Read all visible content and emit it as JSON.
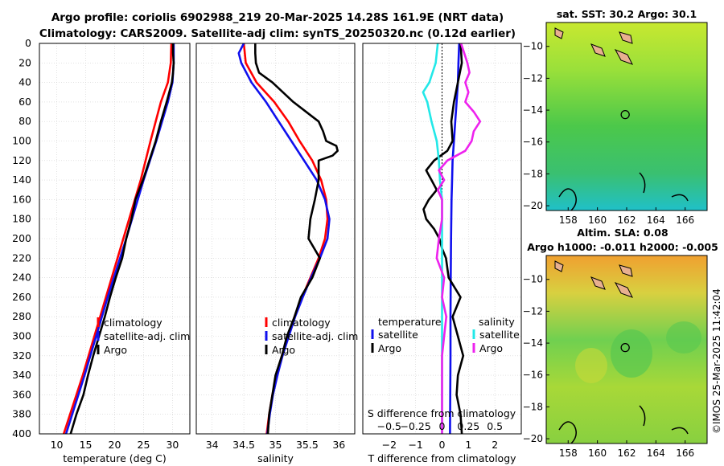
{
  "figure": {
    "title_line1": "Argo profile: coriolis 6902988_219 20-Mar-2025 14.28S 161.9E (NRT data)",
    "title_line2": "Climatology: CARS2009. Satellite-adj clim: synTS_20250320.nc (0.12d earlier)",
    "stamp": "©IMOS 25-Mar-2025 11:42:04"
  },
  "colors": {
    "climatology": "#ff0000",
    "satellite": "#1010ee",
    "argo": "#000000",
    "sat_salinity": "#22e8e8",
    "argo_salinity": "#ee22ee",
    "grid": "#d0d0d0"
  },
  "chart_data": [
    {
      "id": "temperature",
      "type": "line",
      "xlabel": "temperature (deg C)",
      "ylabel": "",
      "xlim": [
        7,
        33
      ],
      "ylim": [
        400,
        0
      ],
      "xticks": [
        10,
        15,
        20,
        25,
        30
      ],
      "yticks": [
        0,
        20,
        40,
        60,
        80,
        100,
        120,
        140,
        160,
        180,
        200,
        220,
        240,
        260,
        280,
        300,
        320,
        340,
        360,
        380,
        400
      ],
      "legend": [
        "climatology",
        "satellite-adj. clim",
        "Argo"
      ],
      "legend_position": "lower-right",
      "series": [
        {
          "name": "climatology",
          "color_key": "climatology",
          "depth": [
            0,
            20,
            40,
            60,
            100,
            140,
            200,
            260,
            300,
            340,
            400
          ],
          "values": [
            29.8,
            29.7,
            29.2,
            28.0,
            26.2,
            24.5,
            21.5,
            18.5,
            16.5,
            14.5,
            11.2
          ]
        },
        {
          "name": "satellite-adj. clim",
          "color_key": "satellite",
          "depth": [
            0,
            20,
            40,
            60,
            100,
            140,
            200,
            260,
            300,
            340,
            400
          ],
          "values": [
            30.2,
            30.2,
            30.0,
            29.2,
            27.2,
            25.0,
            22.0,
            18.8,
            16.8,
            14.8,
            11.6
          ]
        },
        {
          "name": "Argo",
          "color_key": "argo",
          "depth": [
            0,
            10,
            20,
            30,
            40,
            60,
            80,
            100,
            120,
            140,
            160,
            180,
            200,
            220,
            240,
            260,
            280,
            300,
            320,
            340,
            360,
            380,
            400
          ],
          "values": [
            30.1,
            30.1,
            30.2,
            30.1,
            29.9,
            29.0,
            28.0,
            27.1,
            26.0,
            24.9,
            23.6,
            22.9,
            22.0,
            21.3,
            20.2,
            19.2,
            18.3,
            17.3,
            16.3,
            15.4,
            14.6,
            13.4,
            12.4
          ]
        }
      ]
    },
    {
      "id": "salinity",
      "type": "line",
      "xlabel": "salinity",
      "xlim": [
        33.75,
        36.25
      ],
      "ylim": [
        400,
        0
      ],
      "xticks": [
        34,
        34.5,
        35,
        35.5,
        36
      ],
      "legend": [
        "climatology",
        "satellite-adj. clim",
        "Argo"
      ],
      "legend_position": "lower-right",
      "series": [
        {
          "name": "climatology",
          "color_key": "climatology",
          "depth": [
            0,
            20,
            40,
            60,
            80,
            100,
            120,
            140,
            160,
            180,
            200,
            220,
            240,
            260,
            280,
            300,
            320,
            340,
            360,
            380,
            400
          ],
          "values": [
            34.5,
            34.53,
            34.7,
            34.98,
            35.2,
            35.38,
            35.58,
            35.72,
            35.8,
            35.82,
            35.78,
            35.68,
            35.55,
            35.42,
            35.3,
            35.2,
            35.1,
            35.02,
            34.95,
            34.9,
            34.86
          ]
        },
        {
          "name": "satellite-adj. clim",
          "color_key": "satellite",
          "depth": [
            0,
            10,
            20,
            40,
            60,
            80,
            100,
            120,
            140,
            160,
            180,
            200,
            220,
            240,
            260,
            280,
            300,
            320,
            340,
            360,
            380,
            400
          ],
          "values": [
            34.5,
            34.42,
            34.46,
            34.62,
            34.85,
            35.05,
            35.25,
            35.45,
            35.65,
            35.78,
            35.85,
            35.82,
            35.7,
            35.56,
            35.43,
            35.31,
            35.21,
            35.11,
            35.03,
            34.96,
            34.91,
            34.87
          ]
        },
        {
          "name": "Argo",
          "color_key": "argo",
          "depth": [
            0,
            10,
            20,
            30,
            40,
            60,
            80,
            90,
            100,
            105,
            110,
            115,
            120,
            140,
            160,
            180,
            200,
            220,
            240,
            260,
            280,
            300,
            320,
            340,
            360,
            380,
            400
          ],
          "values": [
            34.68,
            34.68,
            34.69,
            34.74,
            34.95,
            35.28,
            35.68,
            35.75,
            35.8,
            35.96,
            35.98,
            35.9,
            35.68,
            35.68,
            35.62,
            35.55,
            35.52,
            35.7,
            35.58,
            35.4,
            35.3,
            35.18,
            35.1,
            35.0,
            34.95,
            34.9,
            34.88
          ]
        }
      ]
    },
    {
      "id": "difference",
      "type": "line",
      "xlabel": "T difference from climatology",
      "xlabel_top": "S difference from climatology",
      "xlim": [
        -3,
        3
      ],
      "ylim": [
        400,
        0
      ],
      "xticks": [
        -2,
        -1,
        0,
        1,
        2
      ],
      "xticks_s": [
        -0.5,
        -0.25,
        0,
        0.25,
        0.5
      ],
      "legend": [
        "temperature",
        "satellite",
        "Argo",
        "salinity",
        "satellite",
        "Argo"
      ],
      "series": [
        {
          "name": "temperature satellite",
          "color_key": "satellite",
          "depth": [
            0,
            20,
            40,
            60,
            80,
            100,
            120,
            140,
            160,
            200,
            240,
            280,
            320,
            360,
            400
          ],
          "values": [
            0.65,
            0.62,
            0.6,
            0.55,
            0.5,
            0.45,
            0.4,
            0.38,
            0.36,
            0.34,
            0.33,
            0.32,
            0.32,
            0.31,
            0.3
          ]
        },
        {
          "name": "temperature Argo",
          "color_key": "argo",
          "depth": [
            0,
            20,
            40,
            60,
            80,
            100,
            110,
            120,
            130,
            140,
            150,
            160,
            170,
            180,
            190,
            200,
            210,
            220,
            240,
            260,
            280,
            300,
            320,
            340,
            360,
            380,
            400
          ],
          "values": [
            0.7,
            0.75,
            0.6,
            0.45,
            0.35,
            0.4,
            0.2,
            -0.3,
            -0.6,
            -0.4,
            -0.2,
            -0.5,
            -0.7,
            -0.6,
            -0.3,
            -0.1,
            0.0,
            0.15,
            0.25,
            0.7,
            0.4,
            0.6,
            0.8,
            0.6,
            0.55,
            0.7,
            0.75
          ]
        },
        {
          "name": "salinity satellite",
          "color_key": "sat_salinity",
          "depth": [
            0,
            20,
            40,
            50,
            60,
            80,
            100,
            120,
            140,
            160,
            200,
            240,
            280,
            320,
            360,
            400
          ],
          "values": [
            -0.04,
            -0.06,
            -0.12,
            -0.18,
            -0.14,
            -0.1,
            -0.05,
            -0.03,
            -0.02,
            0.0,
            0.0,
            0.0,
            0.0,
            0.0,
            0.0,
            0.0
          ]
        },
        {
          "name": "salinity Argo",
          "color_key": "argo_salinity",
          "depth": [
            0,
            10,
            20,
            30,
            40,
            50,
            60,
            70,
            80,
            90,
            100,
            110,
            120,
            130,
            140,
            150,
            160,
            180,
            200,
            220,
            240,
            260,
            280,
            300,
            320,
            340,
            360,
            380,
            400
          ],
          "values": [
            0.18,
            0.21,
            0.24,
            0.26,
            0.22,
            0.25,
            0.22,
            0.3,
            0.36,
            0.3,
            0.28,
            0.22,
            0.05,
            -0.03,
            0.02,
            -0.04,
            0.0,
            0.0,
            -0.03,
            -0.05,
            0.02,
            0.0,
            0.04,
            0.02,
            0.0,
            0.0,
            0.0,
            0.0,
            0.0
          ]
        }
      ]
    },
    {
      "id": "sst_map",
      "type": "heatmap",
      "title": "sat. SST: 30.2 Argo: 30.1",
      "xlim": [
        156.5,
        167.5
      ],
      "ylim": [
        -20.3,
        -8.5
      ],
      "xticks": [
        158,
        160,
        162,
        164,
        166
      ],
      "yticks": [
        -10,
        -12,
        -14,
        -16,
        -18,
        -20
      ],
      "marker": {
        "lon": 161.9,
        "lat": -14.28
      }
    },
    {
      "id": "sla_map",
      "type": "heatmap",
      "title_line1": "Altim. SLA: 0.08",
      "title_line2": "Argo h1000: -0.011 h2000: -0.005",
      "xlim": [
        156.5,
        167.5
      ],
      "ylim": [
        -20.3,
        -8.5
      ],
      "xticks": [
        158,
        160,
        162,
        164,
        166
      ],
      "yticks": [
        -10,
        -12,
        -14,
        -16,
        -18,
        -20
      ],
      "marker": {
        "lon": 161.9,
        "lat": -14.28
      }
    }
  ]
}
